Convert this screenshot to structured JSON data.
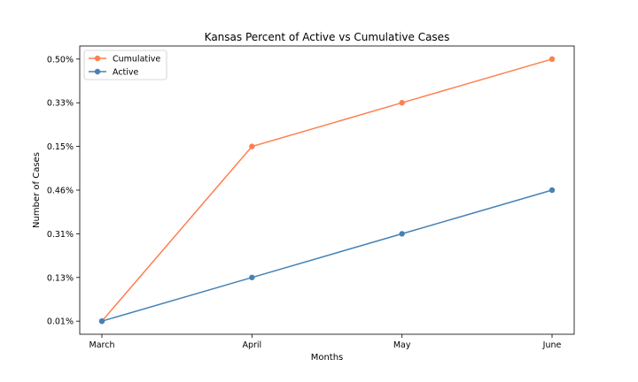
{
  "chart_data": {
    "type": "line",
    "title": "Kansas Percent of Active vs Cumulative Cases",
    "xlabel": "Months",
    "ylabel": "Number of Cases",
    "categories": [
      "March",
      "April",
      "May",
      "June"
    ],
    "y_tick_labels": [
      "0.01%",
      "0.13%",
      "0.31%",
      "0.46%",
      "0.15%",
      "0.33%",
      "0.50%"
    ],
    "y_tick_positions": [
      0,
      1,
      2,
      3,
      4,
      5,
      6
    ],
    "series": [
      {
        "name": "Cumulative",
        "color": "#ff7f50",
        "y_positions": [
          0,
          4,
          5,
          6
        ],
        "labels": [
          "0.01%",
          "0.15%",
          "0.33%",
          "0.50%"
        ]
      },
      {
        "name": "Active",
        "color": "#4682b4",
        "y_positions": [
          0,
          1,
          2,
          3
        ],
        "labels": [
          "0.01%",
          "0.13%",
          "0.31%",
          "0.46%"
        ]
      }
    ],
    "ylim": [
      -0.3,
      6.3
    ],
    "grid": false,
    "legend_position": "top-left"
  }
}
